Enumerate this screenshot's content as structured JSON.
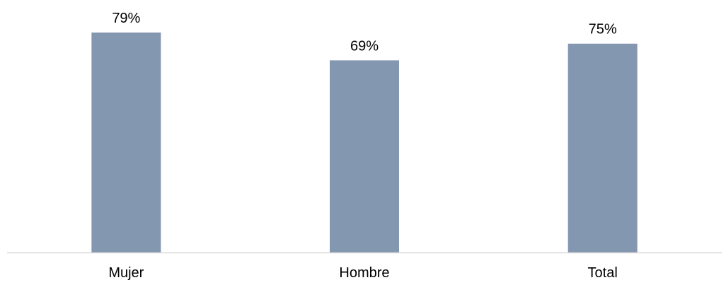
{
  "chart_data": {
    "type": "bar",
    "title": "",
    "xlabel": "",
    "ylabel": "",
    "categories": [
      "Mujer",
      "Hombre",
      "Total"
    ],
    "values": [
      79,
      69,
      75
    ],
    "data_labels": [
      "79%",
      "69%",
      "75%"
    ],
    "ylim": [
      0,
      79
    ],
    "grid": false,
    "legend": "none",
    "colors": {
      "bar": "#8497b0",
      "axis": "#d9d9d9"
    }
  }
}
